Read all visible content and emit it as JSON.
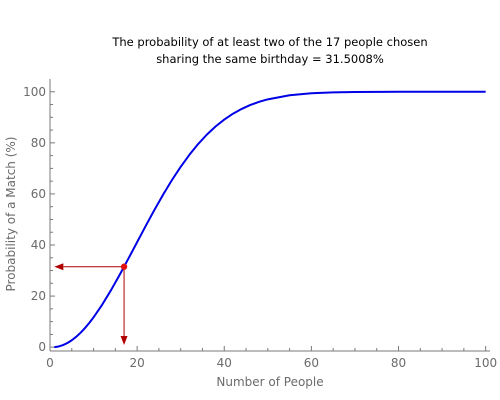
{
  "chart_data": {
    "type": "line",
    "title_lines": [
      "The probability of at least two of the 17 people chosen",
      "sharing the same birthday = 31.5008%"
    ],
    "xlabel": "Number of People",
    "ylabel": "Probability of a Match (%)",
    "xlim": [
      0,
      101
    ],
    "ylim": [
      -1.5,
      105
    ],
    "x_ticks": [
      0,
      20,
      40,
      60,
      80,
      100
    ],
    "y_ticks": [
      0,
      20,
      40,
      60,
      80,
      100
    ],
    "x_tick_labels": [
      "0",
      "20",
      "40",
      "60",
      "80",
      "100"
    ],
    "y_tick_labels": [
      "0",
      "20",
      "40",
      "60",
      "80",
      "100"
    ],
    "series": [
      {
        "color": "#0000e6",
        "x": [
          1,
          2,
          3,
          4,
          5,
          6,
          7,
          8,
          9,
          10,
          12,
          14,
          16,
          18,
          20,
          22,
          24,
          26,
          28,
          30,
          32,
          34,
          36,
          38,
          40,
          42,
          44,
          46,
          48,
          50,
          55,
          60,
          65,
          70,
          75,
          80,
          90,
          100
        ],
        "y": [
          0,
          0.27,
          0.82,
          1.64,
          2.71,
          4.05,
          5.62,
          7.43,
          9.46,
          11.69,
          16.7,
          22.31,
          28.36,
          34.69,
          41.14,
          47.57,
          53.83,
          59.82,
          65.45,
          70.63,
          75.33,
          79.53,
          83.22,
          86.41,
          89.12,
          91.4,
          93.29,
          94.83,
          96.06,
          97.04,
          98.63,
          99.41,
          99.77,
          99.92,
          99.97,
          99.99,
          100,
          100
        ]
      }
    ],
    "highlight_point": {
      "x": 17,
      "y": 31.5008,
      "color": "#e01010"
    },
    "arrow_color": "#b00000",
    "grid": false
  }
}
